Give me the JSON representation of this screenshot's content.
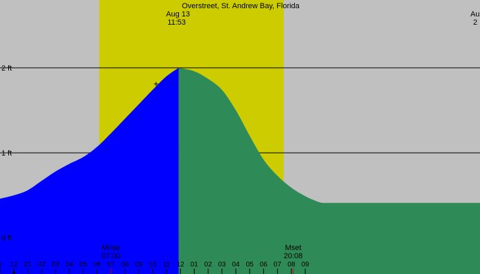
{
  "chart_data": {
    "type": "area",
    "title": "Overstreet, St. Andrew Bay, Florida",
    "peak_label": {
      "date": "Aug 13",
      "time": "11:53"
    },
    "next_day_label": {
      "date": "Au",
      "time": "2"
    },
    "y_unit": "ft",
    "ylim": [
      -0.2,
      2.0
    ],
    "y_ticks": [
      {
        "value": 2,
        "label": "2 ft"
      },
      {
        "value": 1,
        "label": "1 ft"
      },
      {
        "value": 0,
        "label": "0 ft"
      }
    ],
    "xlim": [
      -1.0,
      33.6
    ],
    "x_ticks": [
      {
        "hour": -1,
        "label": "1"
      },
      {
        "hour": 0,
        "label": "12"
      },
      {
        "hour": 1,
        "label": "01"
      },
      {
        "hour": 2,
        "label": "02"
      },
      {
        "hour": 3,
        "label": "03"
      },
      {
        "hour": 4,
        "label": "04"
      },
      {
        "hour": 5,
        "label": "05"
      },
      {
        "hour": 6,
        "label": "06"
      },
      {
        "hour": 7,
        "label": "07"
      },
      {
        "hour": 8,
        "label": "08"
      },
      {
        "hour": 9,
        "label": "09"
      },
      {
        "hour": 10,
        "label": "10"
      },
      {
        "hour": 11,
        "label": "11"
      },
      {
        "hour": 12,
        "label": "12"
      },
      {
        "hour": 13,
        "label": "01"
      },
      {
        "hour": 14,
        "label": "02"
      },
      {
        "hour": 15,
        "label": "03"
      },
      {
        "hour": 16,
        "label": "04"
      },
      {
        "hour": 17,
        "label": "05"
      },
      {
        "hour": 18,
        "label": "06"
      },
      {
        "hour": 19,
        "label": "07"
      },
      {
        "hour": 20,
        "label": "08"
      },
      {
        "hour": 21,
        "label": "09"
      }
    ],
    "daylight": {
      "sunrise_hour": 6.15,
      "sunset_hour": 19.45
    },
    "peak_hour": 11.88,
    "moonrise": {
      "label": "Mrise",
      "time": "07:00",
      "hour": 7.0
    },
    "moonset": {
      "label": "Mset",
      "time": "20:08",
      "hour": 20.13
    },
    "series": [
      {
        "points": [
          [
            -1.0,
            0.46
          ],
          [
            0.0,
            0.5
          ],
          [
            1.0,
            0.56
          ],
          [
            2.0,
            0.67
          ],
          [
            3.0,
            0.78
          ],
          [
            4.0,
            0.87
          ],
          [
            5.0,
            0.95
          ],
          [
            6.0,
            1.07
          ],
          [
            7.0,
            1.23
          ],
          [
            8.0,
            1.4
          ],
          [
            9.0,
            1.57
          ],
          [
            10.0,
            1.74
          ],
          [
            11.0,
            1.9
          ],
          [
            11.88,
            2.0
          ],
          [
            13.0,
            1.96
          ],
          [
            14.0,
            1.87
          ],
          [
            15.0,
            1.74
          ],
          [
            16.0,
            1.5
          ],
          [
            17.0,
            1.2
          ],
          [
            18.0,
            0.92
          ],
          [
            19.0,
            0.73
          ],
          [
            20.0,
            0.59
          ],
          [
            21.0,
            0.49
          ],
          [
            22.0,
            0.42
          ],
          [
            22.5,
            0.41
          ]
        ],
        "color_rising": "#0000ff",
        "color_falling": "#2e8b57"
      }
    ],
    "colors": {
      "night": "#c0c0c0",
      "day": "#cccc00",
      "rising": "#0000ff",
      "falling": "#2e8b57",
      "moon_tick": "#cc0000"
    }
  }
}
